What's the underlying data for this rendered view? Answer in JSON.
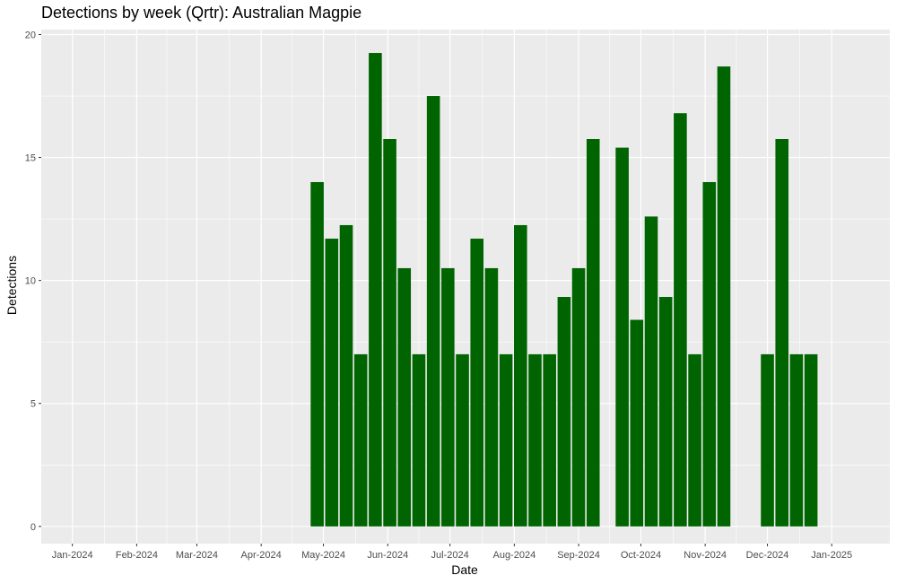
{
  "chart_data": {
    "type": "bar",
    "title": "Detections by week (Qrtr): Australian Magpie",
    "xlabel": "Date",
    "ylabel": "Detections",
    "ylim": [
      -0.7,
      20.2
    ],
    "xlim": [
      "2023-12-17",
      "2025-01-29"
    ],
    "grid": true,
    "bar_color": "#006400",
    "panel_color": "#EBEBEB",
    "y_ticks": [
      0,
      5,
      10,
      15,
      20
    ],
    "x_ticks": [
      {
        "date": "2024-01-01",
        "label": "Jan-2024"
      },
      {
        "date": "2024-02-01",
        "label": "Feb-2024"
      },
      {
        "date": "2024-03-01",
        "label": "Mar-2024"
      },
      {
        "date": "2024-04-01",
        "label": "Apr-2024"
      },
      {
        "date": "2024-05-01",
        "label": "May-2024"
      },
      {
        "date": "2024-06-01",
        "label": "Jun-2024"
      },
      {
        "date": "2024-07-01",
        "label": "Jul-2024"
      },
      {
        "date": "2024-08-01",
        "label": "Aug-2024"
      },
      {
        "date": "2024-09-01",
        "label": "Sep-2024"
      },
      {
        "date": "2024-10-01",
        "label": "Oct-2024"
      },
      {
        "date": "2024-11-01",
        "label": "Nov-2024"
      },
      {
        "date": "2024-12-01",
        "label": "Dec-2024"
      },
      {
        "date": "2025-01-01",
        "label": "Jan-2025"
      }
    ],
    "x": [
      "2024-04-28",
      "2024-05-05",
      "2024-05-12",
      "2024-05-19",
      "2024-05-26",
      "2024-06-02",
      "2024-06-09",
      "2024-06-16",
      "2024-06-23",
      "2024-06-30",
      "2024-07-07",
      "2024-07-14",
      "2024-07-21",
      "2024-07-28",
      "2024-08-04",
      "2024-08-11",
      "2024-08-18",
      "2024-08-25",
      "2024-09-01",
      "2024-09-08",
      "2024-09-22",
      "2024-09-29",
      "2024-10-06",
      "2024-10-13",
      "2024-10-20",
      "2024-10-27",
      "2024-11-03",
      "2024-11-10",
      "2024-12-01",
      "2024-12-08",
      "2024-12-15",
      "2024-12-22"
    ],
    "values": [
      14.0,
      11.7,
      12.25,
      7.0,
      19.25,
      15.75,
      10.5,
      7.0,
      17.5,
      10.5,
      7.0,
      11.7,
      10.5,
      7.0,
      12.25,
      7.0,
      7.0,
      9.33,
      10.5,
      15.75,
      15.4,
      8.4,
      12.6,
      9.33,
      16.8,
      7.0,
      14.0,
      18.7,
      7.0,
      15.75,
      7.0,
      7.0
    ]
  }
}
